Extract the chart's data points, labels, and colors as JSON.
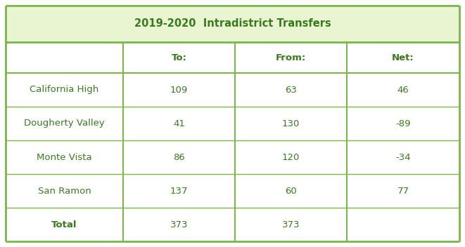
{
  "title": "2019-2020  Intradistrict Transfers",
  "title_bg_color": "#e8f5d0",
  "header_row": [
    "",
    "To:",
    "From:",
    "Net:"
  ],
  "rows": [
    [
      "California High",
      "109",
      "63",
      "46"
    ],
    [
      "Dougherty Valley",
      "41",
      "130",
      "-89"
    ],
    [
      "Monte Vista",
      "86",
      "120",
      "-34"
    ],
    [
      "San Ramon",
      "137",
      "60",
      "77"
    ],
    [
      "Total",
      "373",
      "373",
      ""
    ]
  ],
  "border_color": "#7ab648",
  "text_color": "#3a7a1e",
  "title_bg_color_hex": "#e8f5d0",
  "cell_bg_color": "#ffffff",
  "title_fontsize": 10.5,
  "header_fontsize": 9.5,
  "data_fontsize": 9.5,
  "fig_width": 6.61,
  "fig_height": 3.52,
  "dpi": 100
}
